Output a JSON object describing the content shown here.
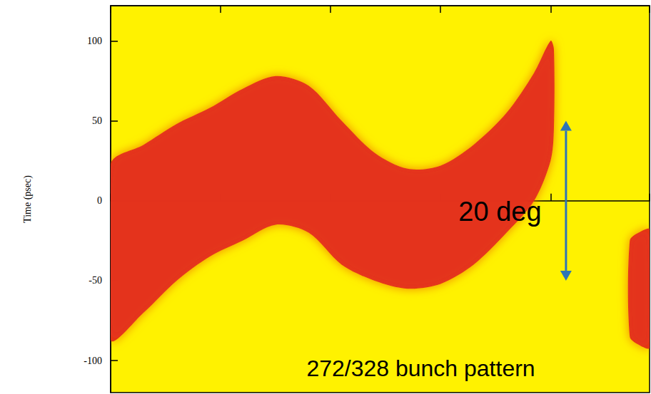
{
  "chart_data": {
    "type": "band",
    "ylabel": "Time (psec)",
    "xlim": [
      0,
      4.9
    ],
    "xticks": [
      0,
      1,
      2,
      3,
      4
    ],
    "ylim": [
      -120,
      122
    ],
    "yticks": [
      -100,
      -50,
      0,
      50,
      100
    ],
    "tick_labels": "y",
    "color": "#e3261a",
    "bands": [
      {
        "x": [
          0,
          0.3,
          0.6,
          0.9,
          1.2,
          1.5,
          1.8,
          2.1,
          2.4,
          2.7,
          3.0,
          3.3,
          3.6,
          3.85,
          4.0,
          4.03
        ],
        "lower": [
          -87,
          -70,
          -50,
          -35,
          -25,
          -15,
          -20,
          -40,
          -50,
          -55,
          -52,
          -40,
          -20,
          0,
          25,
          45
        ],
        "upper": [
          23,
          35,
          48,
          58,
          70,
          78,
          72,
          50,
          30,
          20,
          22,
          35,
          55,
          80,
          100,
          95
        ]
      },
      {
        "x": [
          4.72,
          4.8,
          4.9
        ],
        "lower": [
          -85,
          -90,
          -92
        ],
        "upper": [
          -25,
          -20,
          -18
        ]
      }
    ],
    "annotations": [
      {
        "text": "20 deg",
        "x": 3.54,
        "y": -7
      },
      {
        "text": "272/328 bunch pattern",
        "x": 2.82,
        "y": -105
      }
    ],
    "arrows": [
      {
        "x": 4.14,
        "from": -50,
        "to": 50,
        "color": "#2e75b6"
      }
    ]
  }
}
